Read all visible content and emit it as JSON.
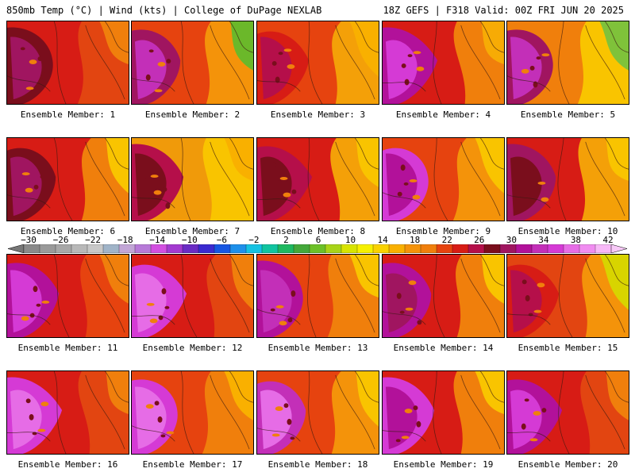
{
  "header": {
    "left": "850mb Temp (°C) | Wind (kts) | College of DuPage NEXLAB",
    "right": "18Z GEFS | F318 Valid: 00Z FRI JUN 20 2025"
  },
  "members": [
    {
      "label": "Ensemble Member: 1",
      "base": "#d71c15",
      "hot": "#a01560",
      "hotAlt": "#7a0e1c",
      "east": "#e24511",
      "corner": "#f07f0c"
    },
    {
      "label": "Ensemble Member: 2",
      "base": "#e6430f",
      "hot": "#c32fb8",
      "hotAlt": "#a01560",
      "east": "#f4930a",
      "corner": "#6bb82a"
    },
    {
      "label": "Ensemble Member: 3",
      "base": "#e6430f",
      "hot": "#b50f4a",
      "hotAlt": "#d71c15",
      "east": "#f4a008",
      "corner": "#f9b000"
    },
    {
      "label": "Ensemble Member: 4",
      "base": "#d71c15",
      "hot": "#d53ad5",
      "hotAlt": "#b2119a",
      "east": "#f07f0c",
      "corner": "#f7ab05"
    },
    {
      "label": "Ensemble Member: 5",
      "base": "#f07f0c",
      "hot": "#c32fb8",
      "hotAlt": "#a01560",
      "east": "#f9c400",
      "corner": "#7fc23a"
    },
    {
      "label": "Ensemble Member: 6",
      "base": "#d71c15",
      "hot": "#a01560",
      "hotAlt": "#7a0e1c",
      "east": "#f07f0c",
      "corner": "#f9c400"
    },
    {
      "label": "Ensemble Member: 7",
      "base": "#f09a0a",
      "hot": "#7a0e1c",
      "hotAlt": "#b50f4a",
      "east": "#f9c400",
      "corner": "#f9b000"
    },
    {
      "label": "Ensemble Member: 8",
      "base": "#d71c15",
      "hot": "#7a0e1c",
      "hotAlt": "#b50f4a",
      "east": "#f4a008",
      "corner": "#f9c400"
    },
    {
      "label": "Ensemble Member: 9",
      "base": "#e6430f",
      "hot": "#b2119a",
      "hotAlt": "#d53ad5",
      "east": "#f4930a",
      "corner": "#f9c400"
    },
    {
      "label": "Ensemble Member: 10",
      "base": "#d71c15",
      "hot": "#7a0e1c",
      "hotAlt": "#a01560",
      "east": "#f4a008",
      "corner": "#f9c400"
    },
    {
      "label": "Ensemble Member: 11",
      "base": "#d71c15",
      "hot": "#d53ad5",
      "hotAlt": "#b2119a",
      "east": "#e6430f",
      "corner": "#f07f0c"
    },
    {
      "label": "Ensemble Member: 12",
      "base": "#d71c15",
      "hot": "#e66ce6",
      "hotAlt": "#d53ad5",
      "east": "#e24511",
      "corner": "#f07f0c"
    },
    {
      "label": "Ensemble Member: 13",
      "base": "#e6430f",
      "hot": "#c32fb8",
      "hotAlt": "#b2119a",
      "east": "#f07f0c",
      "corner": "#f9c400"
    },
    {
      "label": "Ensemble Member: 14",
      "base": "#d71c15",
      "hot": "#a01560",
      "hotAlt": "#b2119a",
      "east": "#f07f0c",
      "corner": "#f9c400"
    },
    {
      "label": "Ensemble Member: 15",
      "base": "#e24511",
      "hot": "#b50f4a",
      "hotAlt": "#d71c15",
      "east": "#f4930a",
      "corner": "#d8d400"
    },
    {
      "label": "Ensemble Member: 16",
      "base": "#d71c15",
      "hot": "#e66ce6",
      "hotAlt": "#d53ad5",
      "east": "#e24511",
      "corner": "#f07f0c"
    },
    {
      "label": "Ensemble Member: 17",
      "base": "#e6430f",
      "hot": "#e66ce6",
      "hotAlt": "#d53ad5",
      "east": "#f07f0c",
      "corner": "#f9b000"
    },
    {
      "label": "Ensemble Member: 18",
      "base": "#e6430f",
      "hot": "#e66ce6",
      "hotAlt": "#c32fb8",
      "east": "#f4930a",
      "corner": "#f9c400"
    },
    {
      "label": "Ensemble Member: 19",
      "base": "#d71c15",
      "hot": "#b2119a",
      "hotAlt": "#d53ad5",
      "east": "#f07f0c",
      "corner": "#f9c400"
    },
    {
      "label": "Ensemble Member: 20",
      "base": "#d71c15",
      "hot": "#d53ad5",
      "hotAlt": "#b2119a",
      "east": "#e24511",
      "corner": "#f07f0c"
    }
  ],
  "colorbar": {
    "labels": [
      "−30",
      "−26",
      "−22",
      "−18",
      "−14",
      "−10",
      "−6",
      "−2",
      "2",
      "6",
      "10",
      "14",
      "18",
      "22",
      "26",
      "30",
      "34",
      "38",
      "42"
    ],
    "colors": [
      "#8a8a8a",
      "#9a9a9a",
      "#a8a8a8",
      "#b8b8b8",
      "#c8c8c8",
      "#a0b4c8",
      "#c2a6d6",
      "#b77ad8",
      "#d24fe0",
      "#a33ad0",
      "#6a2cc4",
      "#3a2ad0",
      "#1656e2",
      "#1e90ea",
      "#16c2e2",
      "#10c4a0",
      "#1eb860",
      "#44a83a",
      "#6cc028",
      "#a8d418",
      "#d8e400",
      "#f6f000",
      "#f9d200",
      "#f9b000",
      "#f4930a",
      "#f07f0c",
      "#e6430f",
      "#d71c15",
      "#b50f4a",
      "#7a0e1c",
      "#a01560",
      "#b2119a",
      "#c32fb8",
      "#d53ad5",
      "#e66ce6",
      "#f08cf0",
      "#f7b8f7"
    ]
  }
}
